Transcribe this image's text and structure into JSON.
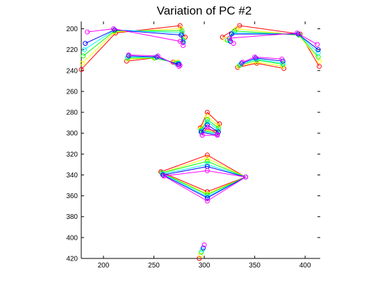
{
  "chart_data": {
    "type": "line",
    "title": "Variation of PC #2",
    "xlabel": "",
    "ylabel": "",
    "xlim": [
      178,
      415
    ],
    "ylim": [
      420,
      193
    ],
    "y_axis_direction": "down",
    "xticks": [
      200,
      250,
      300,
      350,
      400
    ],
    "yticks": [
      200,
      220,
      240,
      260,
      280,
      300,
      320,
      340,
      360,
      380,
      400,
      420
    ],
    "grid": false,
    "legend": "none",
    "marker": "open-circle",
    "series": [
      {
        "color": "#ff0000",
        "polylines": [
          [
            [
              178,
              239
            ],
            [
              212,
              204
            ],
            [
              276,
              197
            ],
            [
              281,
              208
            ]
          ],
          [
            [
              223,
              231
            ],
            [
              250,
              228
            ],
            [
              269,
              232
            ],
            [
              274,
              232
            ]
          ],
          [
            [
              318,
              208
            ],
            [
              335,
              197
            ],
            [
              395,
              205
            ],
            [
              414,
              236
            ]
          ],
          [
            [
              333,
              237
            ],
            [
              352,
              233
            ],
            [
              379,
              238
            ]
          ],
          [
            [
              296,
              295
            ],
            [
              303,
              280
            ],
            [
              315,
              291
            ],
            [
              313,
              298
            ],
            [
              296,
              295
            ]
          ],
          [
            [
              257,
              337
            ],
            [
              303,
              321
            ],
            [
              341,
              342
            ],
            [
              303,
              356
            ],
            [
              257,
              337
            ]
          ],
          [
            [
              295,
              420
            ]
          ]
        ]
      },
      {
        "color": "#ffff00",
        "polylines": [
          [
            [
              179,
              233
            ],
            [
              211,
              203
            ],
            [
              277,
              200
            ],
            [
              279,
              210
            ]
          ],
          [
            [
              224,
              229
            ],
            [
              250,
              228
            ],
            [
              271,
              232
            ],
            [
              274,
              232
            ]
          ],
          [
            [
              321,
              210
            ],
            [
              332,
              200
            ],
            [
              394,
              206
            ],
            [
              414,
              231
            ]
          ],
          [
            [
              334,
              236
            ],
            [
              352,
              232
            ],
            [
              378,
              236
            ]
          ],
          [
            [
              296,
              296
            ],
            [
              303,
              284
            ],
            [
              314,
              293
            ],
            [
              313,
              299
            ],
            [
              296,
              296
            ]
          ],
          [
            [
              258,
              338
            ],
            [
              303,
              324
            ],
            [
              341,
              342
            ],
            [
              303,
              358
            ],
            [
              258,
              338
            ]
          ],
          [
            [
              296,
              417
            ]
          ]
        ]
      },
      {
        "color": "#00ff00",
        "polylines": [
          [
            [
              180,
              226
            ],
            [
              211,
              202
            ],
            [
              278,
              202
            ],
            [
              279,
              211
            ]
          ],
          [
            [
              224,
              228
            ],
            [
              251,
              228
            ],
            [
              272,
              233
            ],
            [
              274,
              233
            ]
          ],
          [
            [
              323,
              211
            ],
            [
              330,
              202
            ],
            [
              394,
              206
            ],
            [
              413,
              227
            ]
          ],
          [
            [
              335,
              235
            ],
            [
              352,
              230
            ],
            [
              378,
              234
            ]
          ],
          [
            [
              297,
              297
            ],
            [
              303,
              287
            ],
            [
              314,
              295
            ],
            [
              313,
              300
            ],
            [
              297,
              297
            ]
          ],
          [
            [
              258,
              338
            ],
            [
              303,
              327
            ],
            [
              341,
              342
            ],
            [
              303,
              359
            ],
            [
              258,
              338
            ]
          ],
          [
            [
              297,
              414
            ]
          ]
        ]
      },
      {
        "color": "#00ffff",
        "polylines": [
          [
            [
              181,
              220
            ],
            [
              211,
              201
            ],
            [
              278,
              204
            ],
            [
              279,
              212
            ]
          ],
          [
            [
              224,
              227
            ],
            [
              252,
              227
            ],
            [
              273,
              234
            ],
            [
              275,
              233
            ]
          ],
          [
            [
              325,
              211
            ],
            [
              328,
              204
            ],
            [
              393,
              205
            ],
            [
              413,
              223
            ]
          ],
          [
            [
              336,
              234
            ],
            [
              351,
              229
            ],
            [
              378,
              233
            ]
          ],
          [
            [
              297,
              298
            ],
            [
              303,
              289
            ],
            [
              314,
              297
            ],
            [
              313,
              301
            ],
            [
              297,
              298
            ]
          ],
          [
            [
              259,
              339
            ],
            [
              303,
              330
            ],
            [
              341,
              342
            ],
            [
              303,
              361
            ],
            [
              259,
              339
            ]
          ],
          [
            [
              298,
              412
            ]
          ]
        ]
      },
      {
        "color": "#0000ff",
        "polylines": [
          [
            [
              182,
              214
            ],
            [
              211,
              201
            ],
            [
              277,
              206
            ],
            [
              279,
              213
            ]
          ],
          [
            [
              225,
              226
            ],
            [
              253,
              227
            ],
            [
              274,
              234
            ],
            [
              275,
              234
            ]
          ],
          [
            [
              326,
              212
            ],
            [
              327,
              205
            ],
            [
              393,
              205
            ],
            [
              413,
              220
            ]
          ],
          [
            [
              337,
              233
            ],
            [
              351,
              228
            ],
            [
              378,
              231
            ]
          ],
          [
            [
              297,
              299
            ],
            [
              303,
              292
            ],
            [
              314,
              299
            ],
            [
              313,
              302
            ],
            [
              297,
              299
            ]
          ],
          [
            [
              259,
              340
            ],
            [
              303,
              332
            ],
            [
              341,
              342
            ],
            [
              303,
              362
            ],
            [
              259,
              340
            ]
          ],
          [
            [
              299,
              410
            ]
          ]
        ]
      },
      {
        "color": "#ff00ff",
        "polylines": [
          [
            [
              184,
              203
            ],
            [
              210,
              200
            ],
            [
              276,
              212
            ],
            [
              279,
              216
            ]
          ],
          [
            [
              225,
              225
            ],
            [
              254,
              226
            ],
            [
              275,
              236
            ],
            [
              276,
              235
            ]
          ],
          [
            [
              329,
              214
            ],
            [
              325,
              209
            ],
            [
              392,
              204
            ],
            [
              412,
              215
            ]
          ],
          [
            [
              338,
              232
            ],
            [
              350,
              227
            ],
            [
              377,
              229
            ]
          ],
          [
            [
              298,
              302
            ],
            [
              303,
              294
            ],
            [
              313,
              301
            ],
            [
              313,
              302
            ],
            [
              298,
              302
            ]
          ],
          [
            [
              260,
              341
            ],
            [
              303,
              336
            ],
            [
              341,
              342
            ],
            [
              303,
              365
            ],
            [
              260,
              341
            ]
          ],
          [
            [
              300,
              407
            ]
          ]
        ]
      }
    ]
  }
}
